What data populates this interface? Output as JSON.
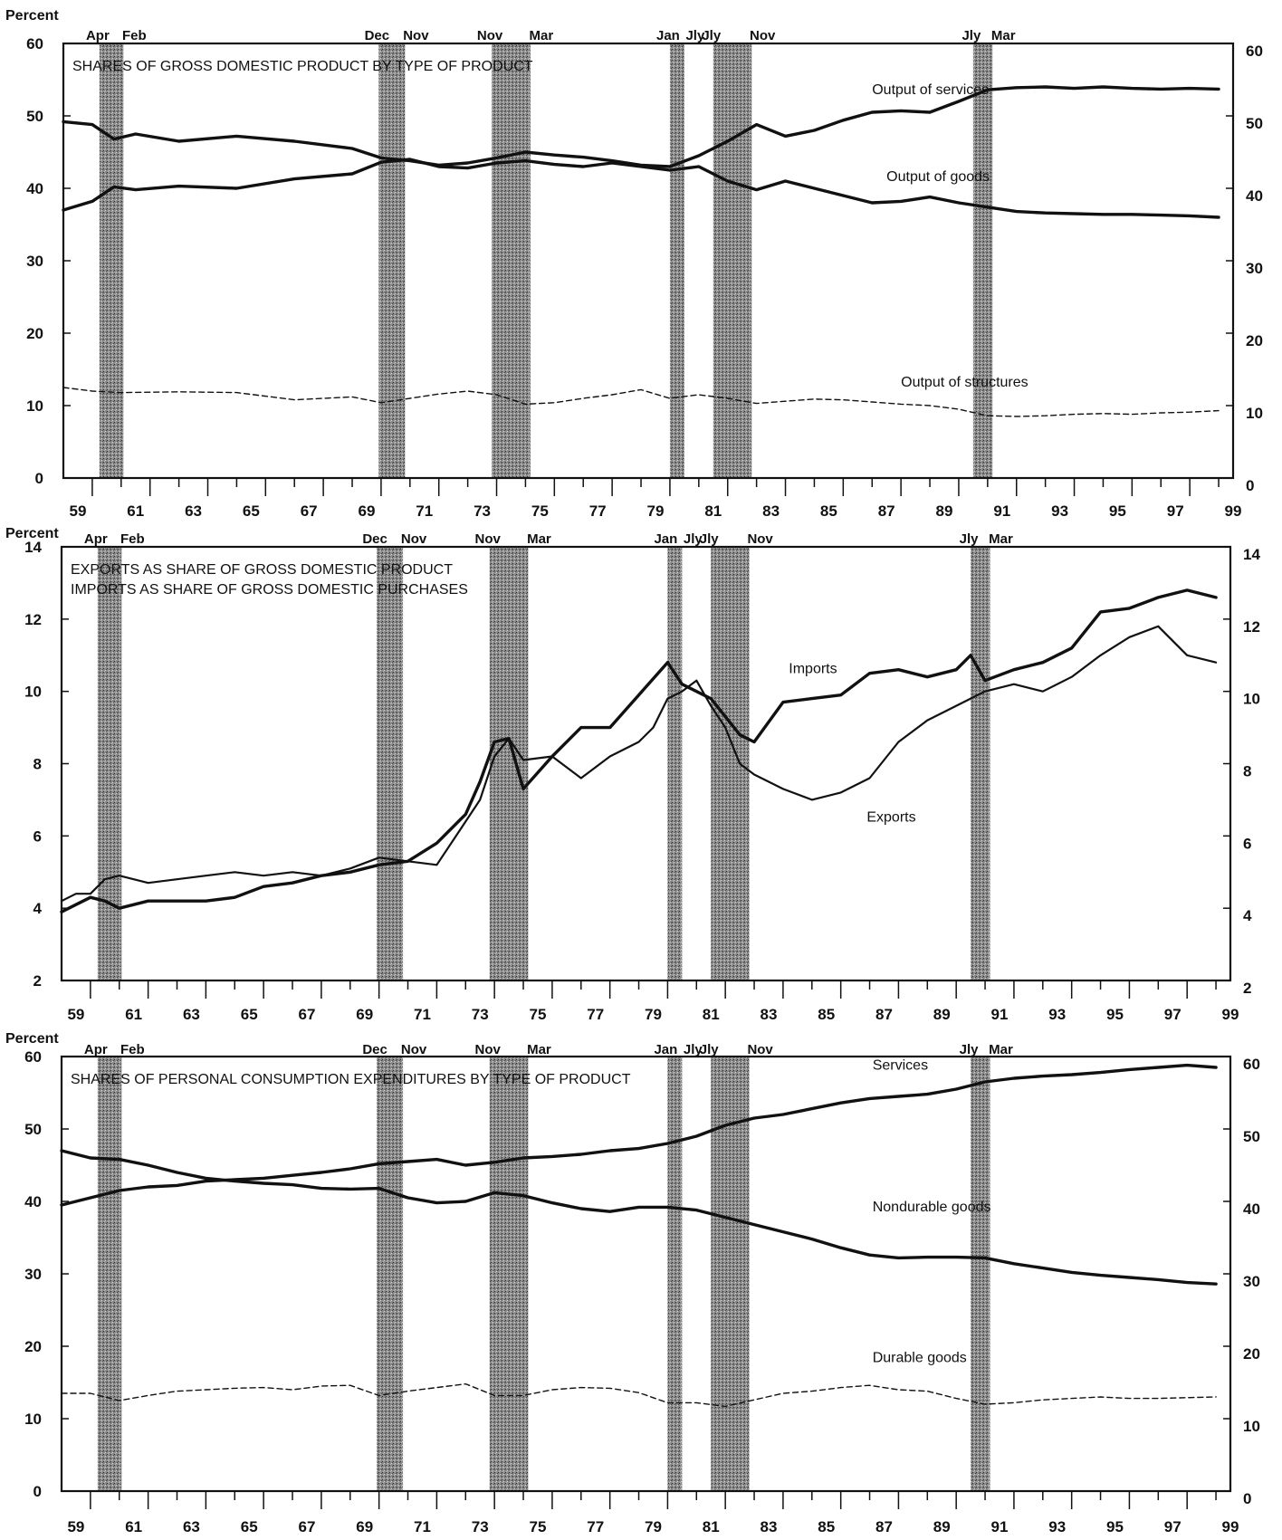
{
  "chart_data": [
    {
      "type": "line",
      "title_lines": [
        "SHARES OF GROSS DOMESTIC PRODUCT BY TYPE OF PRODUCT"
      ],
      "ylabel": "Percent",
      "ylim": [
        0,
        60
      ],
      "yticks": [
        0,
        10,
        20,
        30,
        40,
        50,
        60
      ],
      "xlim": [
        1959,
        1999.5
      ],
      "xtick_labels": [
        "59",
        "61",
        "63",
        "65",
        "67",
        "69",
        "71",
        "73",
        "75",
        "77",
        "79",
        "81",
        "83",
        "85",
        "87",
        "89",
        "91",
        "93",
        "95",
        "97",
        "99"
      ],
      "recessions": [
        {
          "start": 1960.25,
          "end": 1961.08,
          "start_label": "Apr",
          "end_label": "Feb"
        },
        {
          "start": 1969.92,
          "end": 1970.83,
          "start_label": "Dec",
          "end_label": "Nov"
        },
        {
          "start": 1973.83,
          "end": 1975.17,
          "start_label": "Nov",
          "end_label": "Mar"
        },
        {
          "start": 1980.0,
          "end": 1980.5,
          "start_label": "Jan",
          "end_label": "Jly"
        },
        {
          "start": 1981.5,
          "end": 1982.83,
          "start_label": "Jly",
          "end_label": "Nov"
        },
        {
          "start": 1990.5,
          "end": 1991.17,
          "start_label": "Jly",
          "end_label": "Mar"
        }
      ],
      "series": [
        {
          "name": "Output of services",
          "style": "thick",
          "label_at": [
            1987.0,
            53
          ],
          "x": [
            1959,
            1960,
            1960.75,
            1961.5,
            1963,
            1965,
            1967,
            1969,
            1970,
            1971,
            1972,
            1973,
            1974,
            1975,
            1976,
            1977,
            1978,
            1979,
            1980,
            1981,
            1982,
            1983,
            1984,
            1985,
            1986,
            1987,
            1988,
            1989,
            1990,
            1991,
            1992,
            1993,
            1994,
            1995,
            1996,
            1997,
            1998,
            1999
          ],
          "values": [
            49.2,
            48.8,
            46.8,
            47.5,
            46.5,
            47.2,
            46.5,
            45.5,
            44.2,
            43.8,
            43.2,
            43.5,
            44.2,
            45.0,
            44.6,
            44.3,
            43.8,
            43.2,
            43.0,
            44.5,
            46.5,
            48.8,
            47.2,
            48.0,
            49.4,
            50.5,
            50.7,
            50.5,
            52.0,
            53.6,
            53.9,
            54.0,
            53.8,
            54.0,
            53.8,
            53.7,
            53.8,
            53.7
          ]
        },
        {
          "name": "Output of goods",
          "style": "thick",
          "label_at": [
            1987.5,
            41
          ],
          "x": [
            1959,
            1960,
            1960.75,
            1961.5,
            1963,
            1965,
            1967,
            1969,
            1970,
            1971,
            1972,
            1973,
            1974,
            1975,
            1976,
            1977,
            1978,
            1979,
            1980,
            1981,
            1982,
            1983,
            1984,
            1985,
            1986,
            1987,
            1988,
            1989,
            1990,
            1991,
            1992,
            1993,
            1994,
            1995,
            1996,
            1997,
            1998,
            1999
          ],
          "values": [
            37.0,
            38.2,
            40.2,
            39.8,
            40.3,
            40.0,
            41.3,
            42.0,
            43.6,
            44.0,
            43.0,
            42.8,
            43.5,
            43.8,
            43.3,
            43.0,
            43.5,
            43.0,
            42.5,
            43.0,
            41.0,
            39.8,
            41.0,
            40.0,
            39.0,
            38.0,
            38.2,
            38.8,
            38.0,
            37.4,
            36.8,
            36.6,
            36.5,
            36.4,
            36.4,
            36.3,
            36.2,
            36.0
          ]
        },
        {
          "name": "Output of structures",
          "style": "dashed",
          "label_at": [
            1988.0,
            12.6
          ],
          "x": [
            1959,
            1960,
            1961,
            1963,
            1965,
            1967,
            1969,
            1970,
            1971,
            1972,
            1973,
            1974,
            1975,
            1976,
            1977,
            1978,
            1979,
            1980,
            1981,
            1982,
            1983,
            1984,
            1985,
            1986,
            1987,
            1988,
            1989,
            1990,
            1991,
            1992,
            1993,
            1994,
            1995,
            1996,
            1997,
            1998,
            1999
          ],
          "values": [
            12.5,
            12.0,
            11.8,
            11.9,
            11.8,
            10.8,
            11.2,
            10.4,
            11.0,
            11.6,
            12.0,
            11.5,
            10.2,
            10.4,
            11.0,
            11.5,
            12.2,
            11.0,
            11.5,
            11.0,
            10.3,
            10.6,
            10.9,
            10.8,
            10.5,
            10.2,
            10.0,
            9.5,
            8.6,
            8.5,
            8.6,
            8.8,
            8.9,
            8.8,
            9.0,
            9.1,
            9.3
          ]
        }
      ]
    },
    {
      "type": "line",
      "title_lines": [
        "EXPORTS AS SHARE OF GROSS DOMESTIC PRODUCT",
        "IMPORTS AS SHARE OF GROSS DOMESTIC PURCHASES"
      ],
      "ylabel": "Percent",
      "ylim": [
        2,
        14
      ],
      "yticks": [
        2,
        4,
        6,
        8,
        10,
        12,
        14
      ],
      "xlim": [
        1959,
        1999.5
      ],
      "xtick_labels": [
        "59",
        "61",
        "63",
        "65",
        "67",
        "69",
        "71",
        "73",
        "75",
        "77",
        "79",
        "81",
        "83",
        "85",
        "87",
        "89",
        "91",
        "93",
        "95",
        "97",
        "99"
      ],
      "recessions": [
        {
          "start": 1960.25,
          "end": 1961.08,
          "start_label": "Apr",
          "end_label": "Feb"
        },
        {
          "start": 1969.92,
          "end": 1970.83,
          "start_label": "Dec",
          "end_label": "Nov"
        },
        {
          "start": 1973.83,
          "end": 1975.17,
          "start_label": "Nov",
          "end_label": "Mar"
        },
        {
          "start": 1980.0,
          "end": 1980.5,
          "start_label": "Jan",
          "end_label": "Jly"
        },
        {
          "start": 1981.5,
          "end": 1982.83,
          "start_label": "Jly",
          "end_label": "Nov"
        },
        {
          "start": 1990.5,
          "end": 1991.17,
          "start_label": "Jly",
          "end_label": "Mar"
        }
      ],
      "series": [
        {
          "name": "Imports",
          "style": "thick",
          "label_at": [
            1984.2,
            10.5
          ],
          "x": [
            1959,
            1959.5,
            1960,
            1960.5,
            1961,
            1962,
            1963,
            1964,
            1965,
            1966,
            1967,
            1968,
            1969,
            1970,
            1971,
            1972,
            1973,
            1973.5,
            1974,
            1974.5,
            1975,
            1976,
            1977,
            1978,
            1979,
            1980,
            1980.5,
            1981,
            1981.5,
            1982,
            1982.5,
            1983,
            1984,
            1985,
            1986,
            1987,
            1988,
            1989,
            1990,
            1990.5,
            1991,
            1992,
            1993,
            1994,
            1995,
            1996,
            1997,
            1998,
            1999
          ],
          "values": [
            3.9,
            4.1,
            4.3,
            4.2,
            4.0,
            4.2,
            4.2,
            4.2,
            4.3,
            4.6,
            4.7,
            4.9,
            5.0,
            5.2,
            5.3,
            5.8,
            6.6,
            7.5,
            8.6,
            8.7,
            7.3,
            8.2,
            9.0,
            9.0,
            9.9,
            10.8,
            10.2,
            10.0,
            9.8,
            9.3,
            8.8,
            8.6,
            9.7,
            9.8,
            9.9,
            10.5,
            10.6,
            10.4,
            10.6,
            11.0,
            10.3,
            10.6,
            10.8,
            11.2,
            12.2,
            12.3,
            12.6,
            12.8,
            12.6
          ]
        },
        {
          "name": "Exports",
          "style": "normal",
          "label_at": [
            1986.9,
            6.4
          ],
          "x": [
            1959,
            1959.5,
            1960,
            1960.5,
            1961,
            1962,
            1963,
            1964,
            1965,
            1966,
            1967,
            1968,
            1969,
            1970,
            1971,
            1972,
            1973,
            1973.5,
            1974,
            1974.5,
            1975,
            1976,
            1977,
            1978,
            1979,
            1979.5,
            1980,
            1980.5,
            1981,
            1981.5,
            1982,
            1982.5,
            1983,
            1984,
            1985,
            1986,
            1987,
            1988,
            1989,
            1990,
            1990.5,
            1991,
            1992,
            1993,
            1994,
            1995,
            1996,
            1997,
            1998,
            1999
          ],
          "values": [
            4.2,
            4.4,
            4.4,
            4.8,
            4.9,
            4.7,
            4.8,
            4.9,
            5.0,
            4.9,
            5.0,
            4.9,
            5.1,
            5.4,
            5.3,
            5.2,
            6.4,
            7.0,
            8.2,
            8.7,
            8.1,
            8.2,
            7.6,
            8.2,
            8.6,
            9.0,
            9.8,
            10.0,
            10.3,
            9.6,
            9.0,
            8.0,
            7.7,
            7.3,
            7.0,
            7.2,
            7.6,
            8.6,
            9.2,
            9.6,
            9.8,
            10.0,
            10.2,
            10.0,
            10.4,
            11.0,
            11.5,
            11.8,
            11.0,
            10.8
          ]
        }
      ]
    },
    {
      "type": "line",
      "title_lines": [
        "SHARES OF PERSONAL CONSUMPTION EXPENDITURES BY TYPE OF PRODUCT"
      ],
      "ylabel": "Percent",
      "ylim": [
        0,
        60
      ],
      "yticks": [
        0,
        10,
        20,
        30,
        40,
        50,
        60
      ],
      "xlim": [
        1959,
        1999.5
      ],
      "xtick_labels": [
        "59",
        "61",
        "63",
        "65",
        "67",
        "69",
        "71",
        "73",
        "75",
        "77",
        "79",
        "81",
        "83",
        "85",
        "87",
        "89",
        "91",
        "93",
        "95",
        "97",
        "99"
      ],
      "recessions": [
        {
          "start": 1960.25,
          "end": 1961.08,
          "start_label": "Apr",
          "end_label": "Feb"
        },
        {
          "start": 1969.92,
          "end": 1970.83,
          "start_label": "Dec",
          "end_label": "Nov"
        },
        {
          "start": 1973.83,
          "end": 1975.17,
          "start_label": "Nov",
          "end_label": "Mar"
        },
        {
          "start": 1980.0,
          "end": 1980.5,
          "start_label": "Jan",
          "end_label": "Jly"
        },
        {
          "start": 1981.5,
          "end": 1982.83,
          "start_label": "Jly",
          "end_label": "Nov"
        },
        {
          "start": 1990.5,
          "end": 1991.17,
          "start_label": "Jly",
          "end_label": "Mar"
        }
      ],
      "series": [
        {
          "name": "Services",
          "style": "thick",
          "label_at": [
            1987.1,
            58.2
          ],
          "x": [
            1959,
            1960,
            1961,
            1962,
            1963,
            1964,
            1965,
            1966,
            1967,
            1968,
            1969,
            1970,
            1971,
            1972,
            1973,
            1974,
            1975,
            1976,
            1977,
            1978,
            1979,
            1980,
            1981,
            1982,
            1983,
            1984,
            1985,
            1986,
            1987,
            1988,
            1989,
            1990,
            1991,
            1992,
            1993,
            1994,
            1995,
            1996,
            1997,
            1998,
            1999
          ],
          "values": [
            39.5,
            40.5,
            41.5,
            42.0,
            42.2,
            42.8,
            43.0,
            43.2,
            43.6,
            44.0,
            44.5,
            45.2,
            45.5,
            45.8,
            45.0,
            45.4,
            46.0,
            46.2,
            46.5,
            47.0,
            47.3,
            48.0,
            49.0,
            50.5,
            51.5,
            52.0,
            52.8,
            53.6,
            54.2,
            54.5,
            54.8,
            55.5,
            56.5,
            57.0,
            57.3,
            57.5,
            57.8,
            58.2,
            58.5,
            58.8,
            58.5
          ]
        },
        {
          "name": "Nondurable goods",
          "style": "thick",
          "label_at": [
            1987.1,
            38.6
          ],
          "x": [
            1959,
            1960,
            1961,
            1962,
            1963,
            1964,
            1965,
            1966,
            1967,
            1968,
            1969,
            1970,
            1971,
            1972,
            1973,
            1974,
            1975,
            1976,
            1977,
            1978,
            1979,
            1980,
            1981,
            1982,
            1983,
            1984,
            1985,
            1986,
            1987,
            1988,
            1989,
            1990,
            1991,
            1992,
            1993,
            1994,
            1995,
            1996,
            1997,
            1998,
            1999
          ],
          "values": [
            47.0,
            46.0,
            45.8,
            45.0,
            44.0,
            43.2,
            42.8,
            42.5,
            42.3,
            41.8,
            41.7,
            41.8,
            40.5,
            39.8,
            40.0,
            41.2,
            40.8,
            39.8,
            39.0,
            38.6,
            39.2,
            39.2,
            38.8,
            37.8,
            36.8,
            35.8,
            34.8,
            33.6,
            32.6,
            32.2,
            32.3,
            32.3,
            32.2,
            31.4,
            30.8,
            30.2,
            29.8,
            29.5,
            29.2,
            28.8,
            28.6
          ]
        },
        {
          "name": "Durable goods",
          "style": "dashed",
          "label_at": [
            1987.1,
            17.8
          ],
          "x": [
            1959,
            1960,
            1961,
            1962,
            1963,
            1964,
            1965,
            1966,
            1967,
            1968,
            1969,
            1970,
            1971,
            1972,
            1973,
            1974,
            1975,
            1976,
            1977,
            1978,
            1979,
            1980,
            1981,
            1982,
            1983,
            1984,
            1985,
            1986,
            1987,
            1988,
            1989,
            1990,
            1991,
            1992,
            1993,
            1994,
            1995,
            1996,
            1997,
            1998,
            1999
          ],
          "values": [
            13.5,
            13.5,
            12.5,
            13.2,
            13.8,
            14.0,
            14.2,
            14.3,
            14.0,
            14.5,
            14.6,
            13.2,
            13.8,
            14.3,
            14.8,
            13.2,
            13.2,
            14.0,
            14.3,
            14.2,
            13.6,
            12.2,
            12.2,
            11.7,
            12.6,
            13.5,
            13.8,
            14.3,
            14.6,
            14.0,
            13.8,
            12.8,
            12.0,
            12.2,
            12.6,
            12.8,
            13.0,
            12.8,
            12.8,
            12.9,
            13.0
          ]
        }
      ]
    }
  ]
}
